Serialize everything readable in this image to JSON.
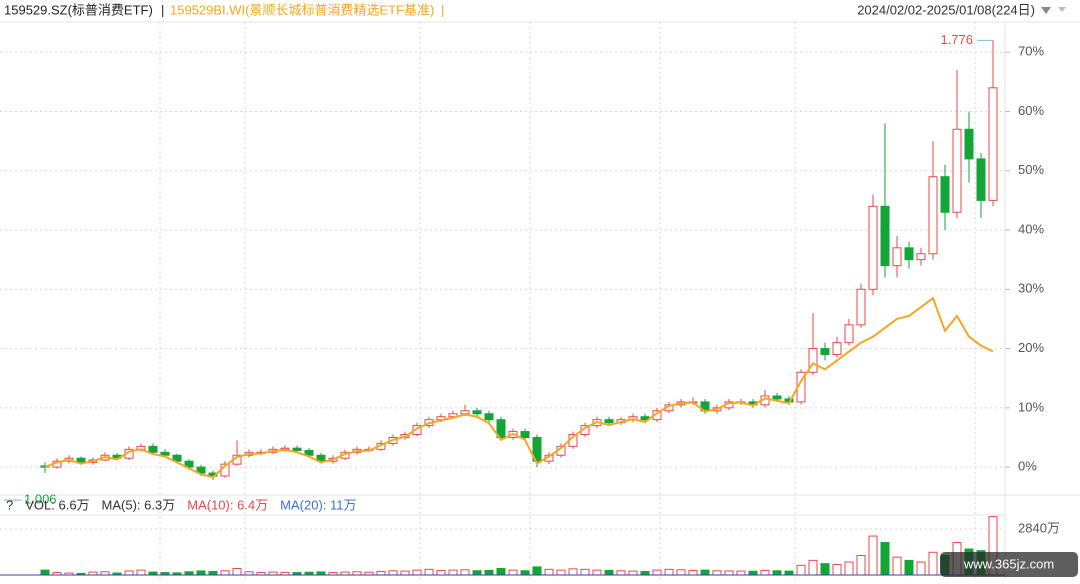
{
  "chart_data": {
    "type": "candlestick",
    "title": "159529.SZ(标普消费ETF)",
    "separator": "|",
    "subtitle": "159529BI.WI(景顺长城标普消费精选ETF基准)",
    "date_range": "2024/02/02-2025/01/08(224日)",
    "up_color": "#e84a4a",
    "down_color": "#13a538",
    "ylim": [
      -4.2,
      72.4
    ],
    "yticks": [
      {
        "value": 0,
        "label": "0%"
      },
      {
        "value": 10,
        "label": "10%"
      },
      {
        "value": 20,
        "label": "20%"
      },
      {
        "value": 30,
        "label": "30%"
      },
      {
        "value": 40,
        "label": "40%"
      },
      {
        "value": 50,
        "label": "50%"
      },
      {
        "value": 60,
        "label": "60%"
      },
      {
        "value": 70,
        "label": "70%"
      }
    ],
    "grid": true,
    "open": [
      0.2,
      0,
      1,
      1.5,
      0.8,
      1.2,
      2,
      1.5,
      3,
      3.5,
      2.5,
      2,
      1,
      0,
      -1,
      -1.5,
      0.5,
      2,
      2.5,
      2.5,
      3,
      3.2,
      2.8,
      2,
      1,
      1.5,
      2.5,
      3,
      3,
      4,
      5,
      5.5,
      7,
      8,
      8.5,
      9,
      9.5,
      9,
      8,
      5,
      6,
      5,
      1,
      2,
      3.5,
      5.5,
      7,
      8,
      7.5,
      8,
      8.5,
      8,
      9.5,
      10.5,
      11,
      11,
      9.5,
      10,
      11,
      11,
      10.5,
      12,
      11.5,
      11,
      16,
      20,
      19,
      21,
      24,
      30,
      44,
      34,
      37,
      35,
      36,
      49,
      43,
      57,
      52,
      45
    ],
    "close": [
      0,
      1,
      1.5,
      0.8,
      1.2,
      2,
      1.5,
      3,
      3.5,
      2.5,
      2,
      1,
      0,
      -1,
      -1.5,
      0.5,
      2,
      2.5,
      2.5,
      3,
      3.2,
      2.8,
      2,
      1,
      1.5,
      2.5,
      3,
      3,
      4,
      5,
      5.5,
      7,
      8,
      8.5,
      9,
      9.5,
      9,
      8,
      5,
      6,
      5,
      1,
      2,
      3.5,
      5.5,
      7,
      8,
      7.5,
      8,
      8.5,
      8,
      9.5,
      10.5,
      11,
      11,
      9.5,
      10,
      11,
      11,
      10.5,
      12,
      11.5,
      11,
      16,
      20,
      19,
      21,
      24,
      30,
      44,
      34,
      37,
      35,
      36,
      49,
      43,
      57,
      52,
      45,
      64
    ],
    "high": [
      0.8,
      1.5,
      2,
      1.8,
      1.6,
      2.5,
      2.4,
      3.5,
      4,
      4,
      3,
      2.3,
      1.3,
      0.4,
      -0.6,
      1,
      4.5,
      3,
      3,
      3.5,
      3.7,
      3.6,
      3.2,
      2.4,
      2,
      3,
      3.5,
      3.5,
      4.5,
      5.5,
      6,
      7.5,
      8.5,
      9,
      9.5,
      10.5,
      10,
      9.5,
      8.5,
      6.5,
      6.5,
      5.5,
      2.5,
      4,
      6,
      7.5,
      8.5,
      8.5,
      8.5,
      9,
      9,
      10,
      11,
      11.5,
      11.8,
      11.5,
      10.5,
      11.5,
      11.5,
      11.5,
      13,
      12.5,
      12,
      16.5,
      26,
      21,
      22,
      25,
      31,
      46,
      58,
      39,
      38,
      37,
      55,
      51,
      67,
      60,
      53,
      72
    ],
    "low": [
      -1,
      -0.3,
      0.6,
      0.4,
      0.4,
      1,
      1.1,
      1.2,
      2.6,
      2.2,
      1.6,
      0.6,
      -0.4,
      -1.5,
      -2.2,
      -1.8,
      0.2,
      1.6,
      2,
      2.2,
      2.6,
      2.4,
      1.6,
      0.6,
      0.6,
      1.2,
      2.1,
      2.5,
      2.7,
      3.6,
      4.6,
      5.2,
      6.6,
      7.6,
      8.1,
      8.6,
      8.5,
      7.5,
      4.4,
      4.6,
      4.4,
      0,
      0.5,
      1.6,
      3.1,
      5.1,
      6.6,
      7,
      7.1,
      7.6,
      7.5,
      7.6,
      9.1,
      10.1,
      10.5,
      9,
      9,
      9.6,
      10.5,
      10,
      10.1,
      11,
      10.5,
      10.6,
      15.5,
      18,
      18.5,
      20.5,
      23.5,
      29,
      32,
      32,
      33.5,
      34,
      35,
      40,
      42,
      48,
      42,
      44
    ],
    "benchmark": {
      "color": "#f5a623",
      "values": [
        0,
        0.8,
        1.2,
        0.6,
        1,
        1.7,
        1.3,
        2.6,
        3,
        2.2,
        1.8,
        0.8,
        -0.2,
        -1.2,
        -1.7,
        0.2,
        1.7,
        2.2,
        2.3,
        2.7,
        2.9,
        2.5,
        1.8,
        0.8,
        1.3,
        2.2,
        2.7,
        2.8,
        3.7,
        4.6,
        5.1,
        6.5,
        7.4,
        7.9,
        8.3,
        8.9,
        8.5,
        7.4,
        4.6,
        5.6,
        4.6,
        0.6,
        1.8,
        3.2,
        5.1,
        6.6,
        7.6,
        7.1,
        7.6,
        8.1,
        7.6,
        9.1,
        10.3,
        10.8,
        10.9,
        9.4,
        9.8,
        10.8,
        10.9,
        10.4,
        11.6,
        11.2,
        10.8,
        14.5,
        17.5,
        16.5,
        18,
        19.5,
        21,
        22,
        23.5,
        25,
        25.5,
        27,
        28.5,
        23,
        25.5,
        22,
        20.5,
        19.5
      ]
    },
    "annotations": [
      "1.776",
      "1.006"
    ],
    "volume": {
      "legend": [
        {
          "text": "?",
          "color": "#333333"
        },
        {
          "text": "VOL: 6.6万",
          "color": "#333333"
        },
        {
          "text": "MA(5): 6.3万",
          "color": "#333333"
        },
        {
          "text": "MA(10): 6.4万",
          "color": "#e84a4a"
        },
        {
          "text": "MA(20): 11万",
          "color": "#3b6fd8"
        }
      ],
      "ylim": [
        0,
        3700
      ],
      "yticks": [
        {
          "value": 2840,
          "label": "2840万"
        }
      ],
      "values": [
        300,
        150,
        120,
        100,
        180,
        200,
        120,
        250,
        300,
        180,
        150,
        130,
        200,
        250,
        220,
        260,
        400,
        200,
        150,
        180,
        160,
        150,
        170,
        190,
        160,
        180,
        200,
        170,
        220,
        260,
        240,
        300,
        350,
        280,
        300,
        320,
        260,
        280,
        400,
        300,
        260,
        500,
        350,
        300,
        380,
        350,
        300,
        280,
        260,
        240,
        220,
        300,
        350,
        320,
        280,
        300,
        260,
        250,
        240,
        230,
        280,
        260,
        240,
        600,
        900,
        700,
        650,
        800,
        1200,
        2400,
        2000,
        1100,
        900,
        800,
        1400,
        1200,
        2000,
        1600,
        1500,
        3600
      ]
    },
    "watermark": "www.365jz.com"
  }
}
